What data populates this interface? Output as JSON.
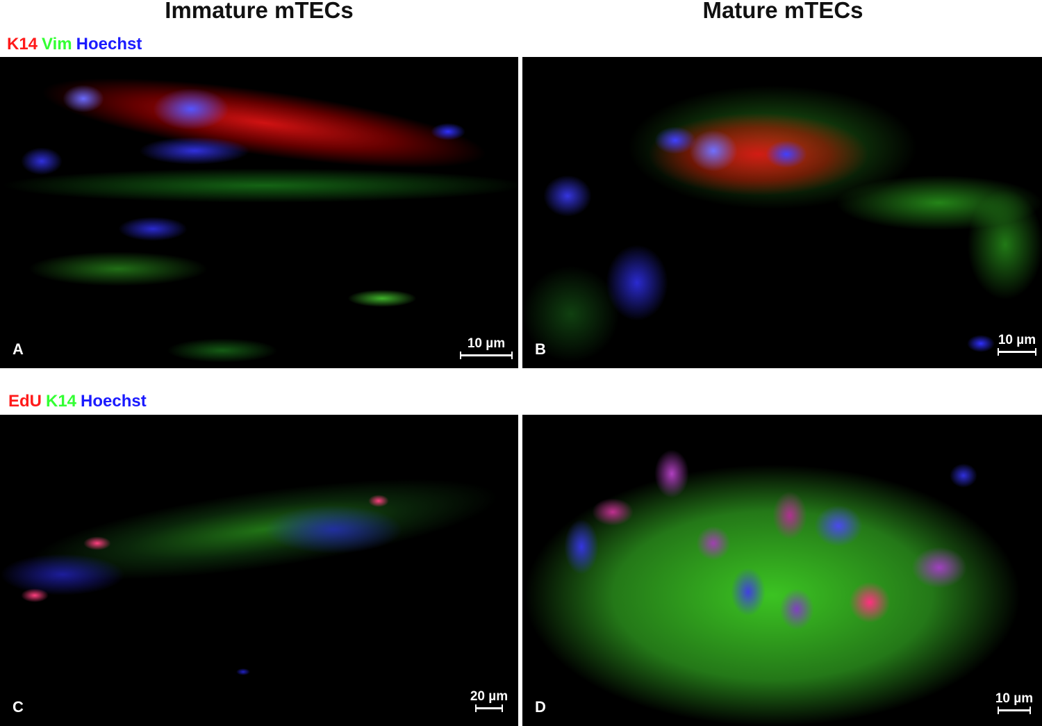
{
  "columns": {
    "left": "Immature mTECs",
    "right": "Mature mTECs"
  },
  "legends": {
    "top": [
      {
        "text": "K14",
        "color": "#ff1a1a"
      },
      {
        "text": "Vim",
        "color": "#33ff33"
      },
      {
        "text": "Hoechst",
        "color": "#1a1aff"
      }
    ],
    "bottom": [
      {
        "text": "EdU",
        "color": "#ff1a1a"
      },
      {
        "text": "K14",
        "color": "#33ff33"
      },
      {
        "text": "Hoechst",
        "color": "#1a1aff"
      }
    ]
  },
  "panels": [
    {
      "letter": "A",
      "scale": "10 µm"
    },
    {
      "letter": "B",
      "scale": "10 µm"
    },
    {
      "letter": "C",
      "scale": "20 µm"
    },
    {
      "letter": "D",
      "scale": "10 µm"
    }
  ]
}
